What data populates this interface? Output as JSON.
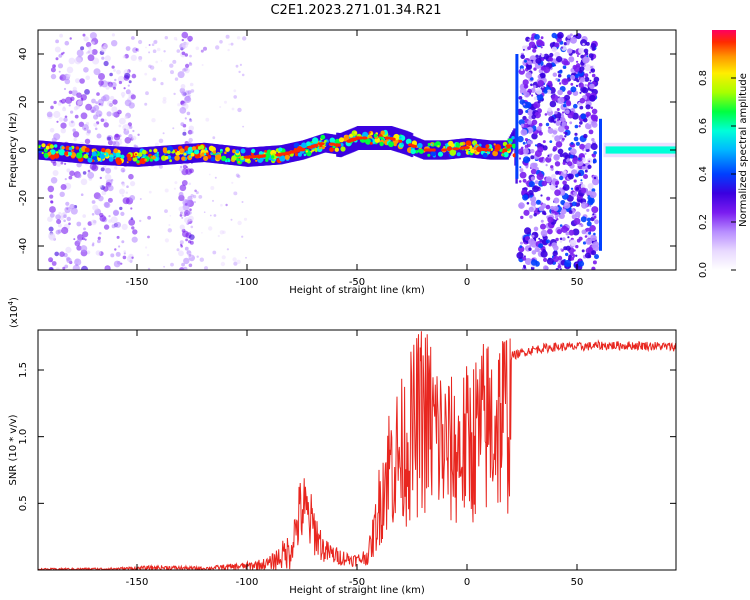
{
  "title": "C2E1.2023.271.01.34.R21",
  "colors": {
    "snr_line": "#e8261f",
    "colormap": [
      "#ffffff",
      "#e8d8ff",
      "#b78cff",
      "#7a1cf0",
      "#3a00e0",
      "#0040ff",
      "#00b8ff",
      "#00ffd8",
      "#00ff40",
      "#a8ff00",
      "#ffee00",
      "#ff9500",
      "#ff2a00",
      "#ff0060"
    ]
  },
  "chart_data": [
    {
      "type": "heatmap",
      "xlabel": "Height of straight line (km)",
      "ylabel": "Frequency (Hz)",
      "xlim": [
        -195,
        95
      ],
      "ylim": [
        -50,
        50
      ],
      "xticks": [
        -150,
        -100,
        -50,
        0,
        50
      ],
      "yticks": [
        -40,
        -20,
        0,
        20,
        40
      ],
      "grid": false,
      "ridge": {
        "x": [
          -195,
          -170,
          -150,
          -120,
          -100,
          -85,
          -75,
          -65,
          -58,
          -50,
          -42,
          -35,
          -28,
          -20,
          -10,
          0,
          10,
          18,
          21,
          22
        ],
        "y": [
          0,
          -2,
          -3,
          -1,
          -3,
          -2,
          0,
          3,
          2,
          5,
          5,
          5,
          3,
          0,
          0,
          1,
          0,
          0,
          5,
          -10
        ]
      },
      "broadband_regions": [
        {
          "x": [
            24,
            59
          ],
          "y": [
            -50,
            48
          ]
        },
        {
          "x": [
            -190,
            -150
          ],
          "y": [
            -50,
            48
          ]
        },
        {
          "x": [
            -130,
            -125
          ],
          "y": [
            -50,
            48
          ]
        }
      ],
      "colorbar": {
        "label": "Normalized spectral amplitude",
        "range": [
          0,
          1
        ],
        "ticks": [
          0.0,
          0.2,
          0.4,
          0.6,
          0.8
        ]
      }
    },
    {
      "type": "line",
      "xlabel": "Height of straight line (km)",
      "ylabel": "SNR (10 * v/v)",
      "multiplier_label": "(x10",
      "multiplier_exponent": "4",
      "multiplier_close": ")",
      "xlim": [
        -195,
        95
      ],
      "ylim": [
        0,
        1.8
      ],
      "xticks": [
        -150,
        -100,
        -50,
        0,
        50
      ],
      "yticks": [
        0.5,
        1.0,
        1.5
      ],
      "ytick_labels": [
        "0.5",
        "1.0",
        "1.5"
      ],
      "grid": false,
      "envelope": {
        "x": [
          -195,
          -160,
          -140,
          -120,
          -100,
          -90,
          -80,
          -75,
          -70,
          -65,
          -60,
          -55,
          -50,
          -45,
          -42,
          -38,
          -35,
          -30,
          -25,
          -20,
          -15,
          -10,
          -5,
          0,
          5,
          10,
          20,
          30,
          40,
          50,
          60,
          70,
          80,
          95
        ],
        "y": [
          0.01,
          0.015,
          0.03,
          0.02,
          0.05,
          0.08,
          0.25,
          0.65,
          0.45,
          0.2,
          0.15,
          0.12,
          0.1,
          0.15,
          0.4,
          0.9,
          1.1,
          1.2,
          1.4,
          1.6,
          1.45,
          1.25,
          1.2,
          1.3,
          1.4,
          1.5,
          1.62,
          1.67,
          1.69,
          1.69,
          1.7,
          1.7,
          1.7,
          1.69
        ]
      }
    }
  ]
}
